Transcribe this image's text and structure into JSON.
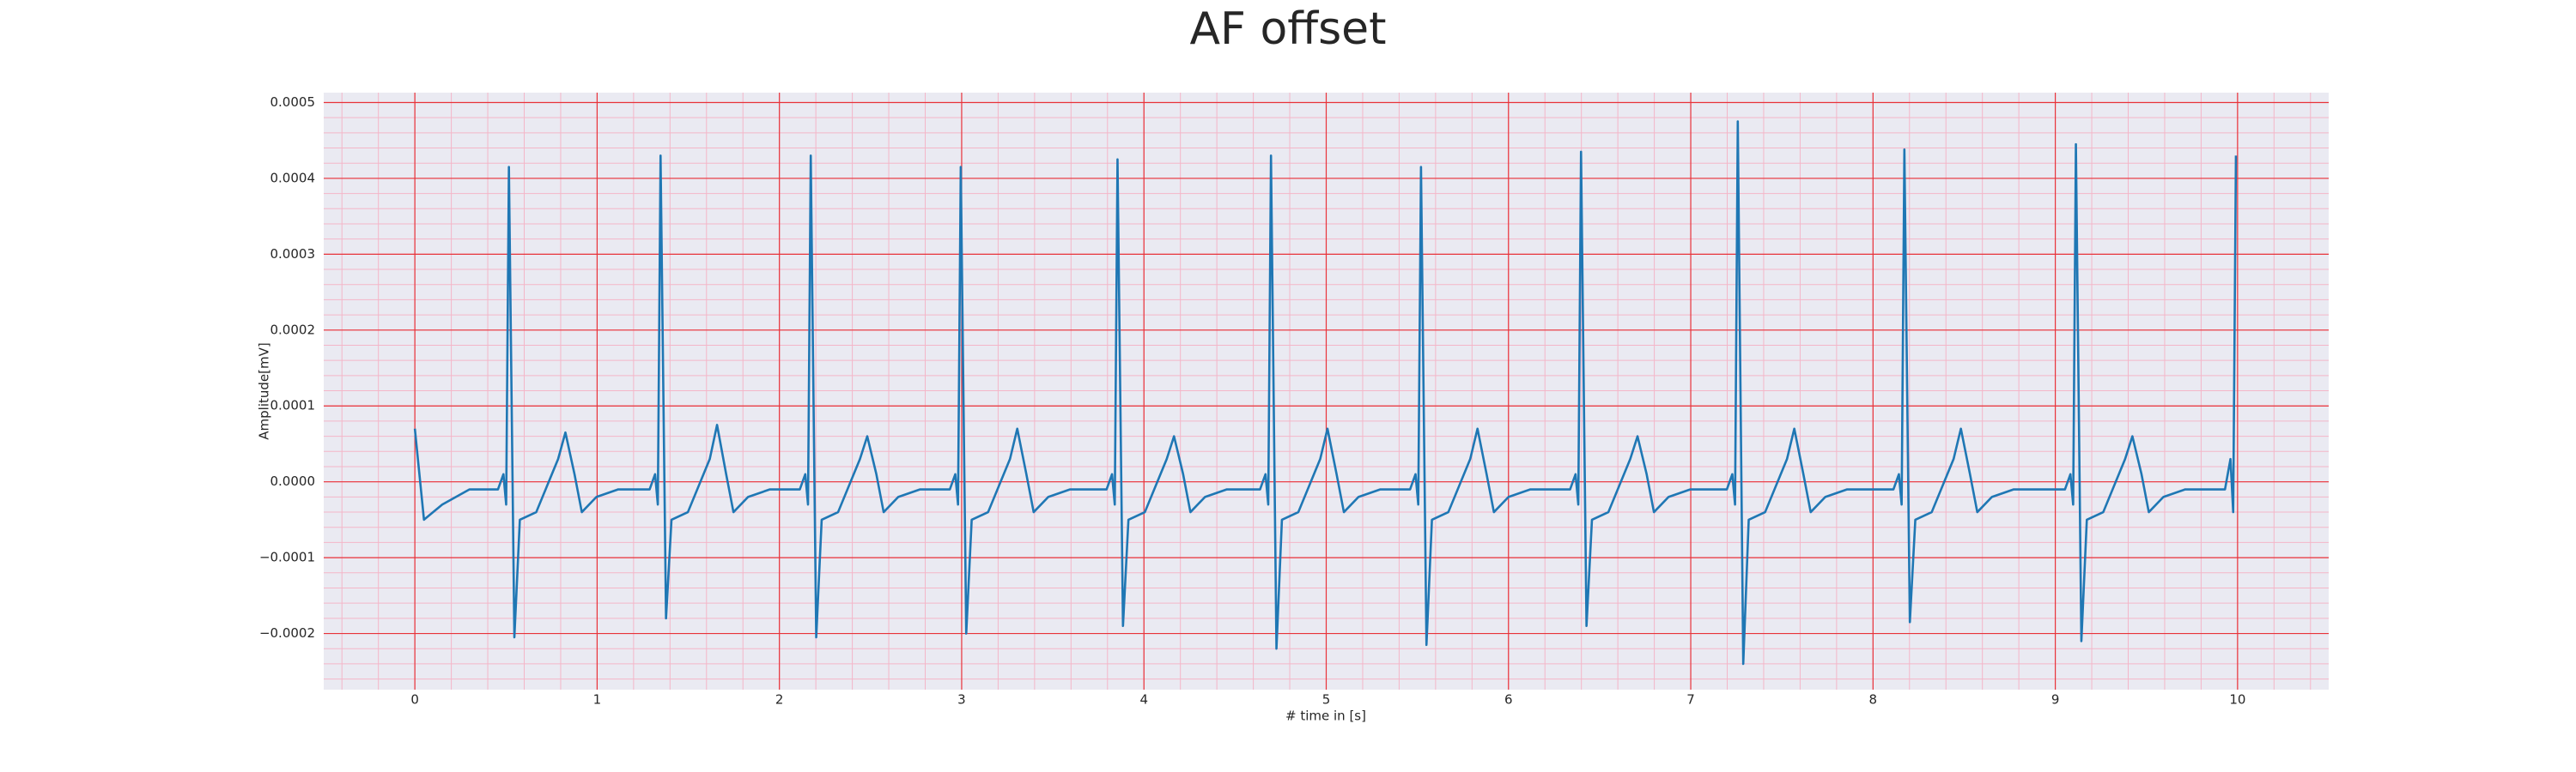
{
  "chart_data": {
    "type": "line",
    "title": "AF offset",
    "xlabel": "# time in [s]",
    "ylabel": "Amplitude[mV]",
    "xlim": [
      -0.5,
      10.5
    ],
    "ylim": [
      -0.000274,
      0.000513
    ],
    "xticks": [
      0,
      1,
      2,
      3,
      4,
      5,
      6,
      7,
      8,
      9,
      10
    ],
    "yticks": [
      {
        "value": -0.0002,
        "label": "−0.0002"
      },
      {
        "value": -0.0001,
        "label": "−0.0001"
      },
      {
        "value": 0,
        "label": "0.0000"
      },
      0.0001,
      0.0002,
      0.0003,
      0.0004,
      0.0005
    ],
    "grid": true,
    "minor_grid": {
      "x": 0.2,
      "y": 2e-05
    },
    "series": [
      {
        "color": "#1f77b4",
        "x": [
          0,
          0.05,
          0.15,
          0.3,
          0.4,
          0.456,
          0.486,
          0.501,
          0.516,
          0.546,
          0.576,
          0.666,
          0.786,
          0.826,
          0.876,
          0.916,
          0.996,
          1.116,
          1.288,
          1.318,
          1.333,
          1.348,
          1.378,
          1.408,
          1.498,
          1.618,
          1.658,
          1.708,
          1.748,
          1.828,
          1.948,
          2.112,
          2.142,
          2.157,
          2.172,
          2.202,
          2.232,
          2.322,
          2.442,
          2.482,
          2.532,
          2.572,
          2.652,
          2.772,
          2.935,
          2.965,
          2.98,
          2.995,
          3.025,
          3.055,
          3.145,
          3.265,
          3.305,
          3.355,
          3.395,
          3.475,
          3.595,
          3.795,
          3.825,
          3.84,
          3.855,
          3.885,
          3.915,
          4.005,
          4.125,
          4.165,
          4.215,
          4.255,
          4.335,
          4.455,
          4.637,
          4.667,
          4.682,
          4.697,
          4.727,
          4.757,
          4.847,
          4.967,
          5.007,
          5.057,
          5.097,
          5.177,
          5.297,
          5.46,
          5.49,
          5.505,
          5.52,
          5.55,
          5.58,
          5.67,
          5.79,
          5.83,
          5.88,
          5.92,
          6.0,
          6.12,
          6.338,
          6.368,
          6.383,
          6.398,
          6.428,
          6.458,
          6.548,
          6.668,
          6.708,
          6.758,
          6.798,
          6.878,
          6.998,
          7.198,
          7.228,
          7.243,
          7.258,
          7.288,
          7.318,
          7.408,
          7.528,
          7.568,
          7.618,
          7.658,
          7.738,
          7.858,
          8.112,
          8.142,
          8.157,
          8.172,
          8.202,
          8.232,
          8.322,
          8.442,
          8.482,
          8.532,
          8.572,
          8.652,
          8.772,
          9.053,
          9.083,
          9.098,
          9.113,
          9.143,
          9.173,
          9.263,
          9.383,
          9.423,
          9.473,
          9.513,
          9.593,
          9.713,
          9.931,
          9.961,
          9.976,
          9.991
        ],
        "values": [
          7e-05,
          -5e-05,
          -3e-05,
          -1e-05,
          -1e-05,
          -1e-05,
          1e-05,
          -3e-05,
          0.000415,
          -0.000205,
          -5e-05,
          -4e-05,
          3e-05,
          6.5e-05,
          1e-05,
          -4e-05,
          -2e-05,
          -1e-05,
          -1e-05,
          1e-05,
          -3e-05,
          0.00043,
          -0.00018,
          -5e-05,
          -4e-05,
          3e-05,
          7.5e-05,
          1e-05,
          -4e-05,
          -2e-05,
          -1e-05,
          -1e-05,
          1e-05,
          -3e-05,
          0.00043,
          -0.000205,
          -5e-05,
          -4e-05,
          3e-05,
          6e-05,
          1e-05,
          -4e-05,
          -2e-05,
          -1e-05,
          -1e-05,
          1e-05,
          -3e-05,
          0.000415,
          -0.0002,
          -5e-05,
          -4e-05,
          3e-05,
          7e-05,
          1e-05,
          -4e-05,
          -2e-05,
          -1e-05,
          -1e-05,
          1e-05,
          -3e-05,
          0.000425,
          -0.00019,
          -5e-05,
          -4e-05,
          3e-05,
          6e-05,
          1e-05,
          -4e-05,
          -2e-05,
          -1e-05,
          -1e-05,
          1e-05,
          -3e-05,
          0.00043,
          -0.00022,
          -5e-05,
          -4e-05,
          3e-05,
          7e-05,
          1e-05,
          -4e-05,
          -2e-05,
          -1e-05,
          -1e-05,
          1e-05,
          -3e-05,
          0.000415,
          -0.000215,
          -5e-05,
          -4e-05,
          3e-05,
          7e-05,
          1e-05,
          -4e-05,
          -2e-05,
          -1e-05,
          -1e-05,
          1e-05,
          -3e-05,
          0.000435,
          -0.00019,
          -5e-05,
          -4e-05,
          3e-05,
          6e-05,
          1e-05,
          -4e-05,
          -2e-05,
          -1e-05,
          -1e-05,
          1e-05,
          -3e-05,
          0.000475,
          -0.00024,
          -5e-05,
          -4e-05,
          3e-05,
          7e-05,
          1e-05,
          -4e-05,
          -2e-05,
          -1e-05,
          -1e-05,
          1e-05,
          -3e-05,
          0.000438,
          -0.000185,
          -5e-05,
          -4e-05,
          3e-05,
          7e-05,
          1e-05,
          -4e-05,
          -2e-05,
          -1e-05,
          -1e-05,
          1e-05,
          -3e-05,
          0.000445,
          -0.00021,
          -5e-05,
          -4e-05,
          3e-05,
          6e-05,
          1e-05,
          -4e-05,
          -2e-05,
          -1e-05,
          -1e-05,
          3e-05,
          -4e-05,
          0.00043
        ]
      }
    ]
  }
}
